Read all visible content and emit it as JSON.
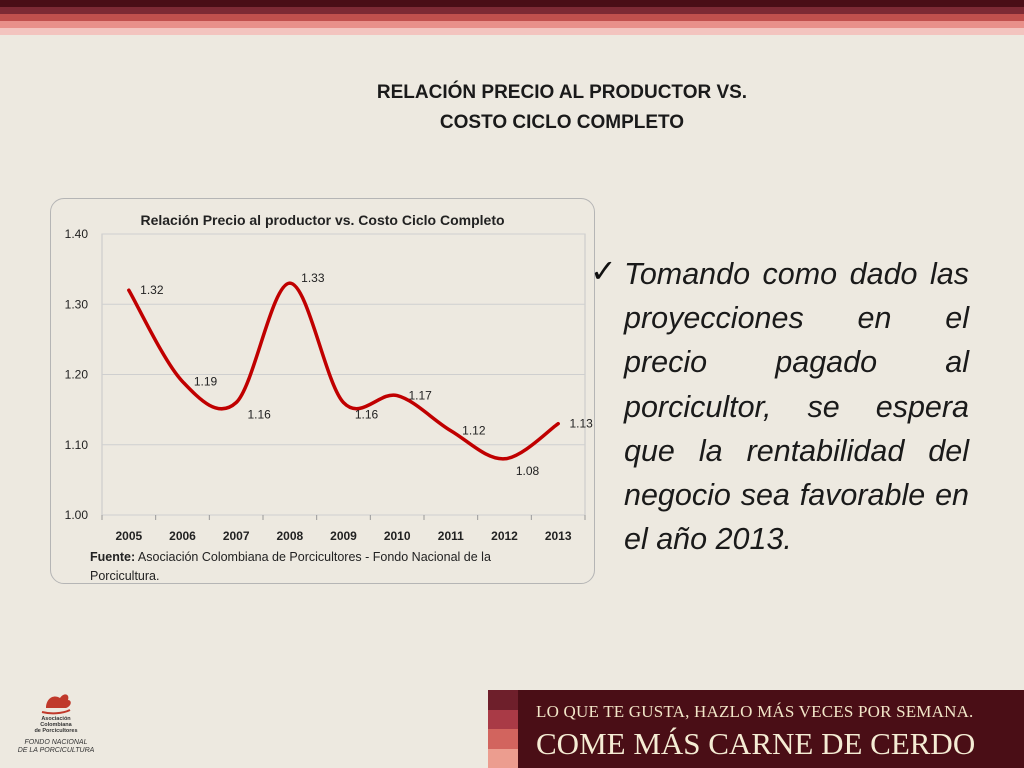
{
  "colors": {
    "stripes": [
      "#4a0e16",
      "#7d2a34",
      "#c0504d",
      "#e8908a",
      "#f3c4bf"
    ],
    "line": "#c00000",
    "banner_blocks": [
      "#6e1f2b",
      "#a93a46",
      "#d2645e",
      "#ec9d8f"
    ]
  },
  "slide": {
    "title_line1": "RELACIÓN PRECIO AL PRODUCTOR VS.",
    "title_line2": "COSTO CICLO COMPLETO"
  },
  "chart_data": {
    "type": "line",
    "title": "Relación Precio al productor vs. Costo Ciclo Completo",
    "categories": [
      "2005",
      "2006",
      "2007",
      "2008",
      "2009",
      "2010",
      "2011",
      "2012",
      "2013"
    ],
    "series": [
      {
        "values": [
          1.32,
          1.19,
          1.16,
          1.33,
          1.16,
          1.17,
          1.12,
          1.08,
          1.13
        ]
      }
    ],
    "data_labels": [
      "1.32",
      "1.19",
      "1.16",
      "1.33",
      "1.16",
      "1.17",
      "1.12",
      "1.08",
      "1.13"
    ],
    "yticks": [
      "1.00",
      "1.10",
      "1.20",
      "1.30",
      "1.40"
    ],
    "ylim": [
      1.0,
      1.4
    ],
    "grid": true,
    "smooth": true,
    "legend": "none"
  },
  "source": {
    "label": "Fuente:",
    "text": " Asociación Colombiana de Porcicultores - Fondo Nacional de la Porcicultura."
  },
  "bullet": {
    "icon": "check-icon",
    "text": "Tomando como dado las proyecciones en el precio pagado al porcicultor, se espera que la rentabilidad del negocio sea favorable en el año 2013."
  },
  "logo": {
    "name_line1": "Asociación",
    "name_line2": "Colombiana",
    "name_line3": "de Porcicultores",
    "fondo_line1": "FONDO NACIONAL",
    "fondo_line2": "DE LA PORCICULTURA"
  },
  "banner": {
    "line1": "LO QUE TE GUSTA, HAZLO MÁS VECES POR SEMANA.",
    "line2": "COME MÁS CARNE DE CERDO"
  }
}
